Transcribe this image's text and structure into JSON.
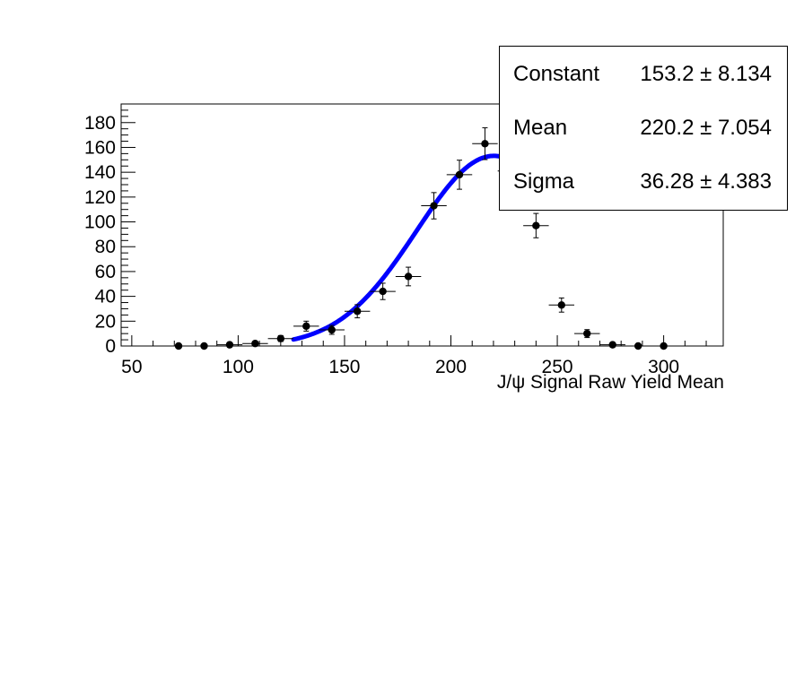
{
  "chart_data": {
    "type": "scatter",
    "title": "",
    "xlabel": "J/ψ Signal Raw Yield Mean",
    "ylabel": "",
    "xlim": [
      45,
      328
    ],
    "ylim": [
      0,
      195
    ],
    "x_ticks": [
      50,
      100,
      150,
      200,
      250,
      300
    ],
    "y_ticks": [
      0,
      20,
      40,
      60,
      80,
      100,
      120,
      140,
      160,
      180
    ],
    "grid": false,
    "points": [
      {
        "x": 72,
        "y": 0,
        "xerr": 6,
        "yerr": 1
      },
      {
        "x": 84,
        "y": 0,
        "xerr": 6,
        "yerr": 1
      },
      {
        "x": 96,
        "y": 1,
        "xerr": 6,
        "yerr": 1
      },
      {
        "x": 108,
        "y": 2,
        "xerr": 6,
        "yerr": 1.4
      },
      {
        "x": 120,
        "y": 6,
        "xerr": 6,
        "yerr": 2.4
      },
      {
        "x": 132,
        "y": 16,
        "xerr": 6,
        "yerr": 4
      },
      {
        "x": 144,
        "y": 13,
        "xerr": 6,
        "yerr": 3.6
      },
      {
        "x": 156,
        "y": 28,
        "xerr": 6,
        "yerr": 5.3
      },
      {
        "x": 168,
        "y": 44,
        "xerr": 6,
        "yerr": 6.6
      },
      {
        "x": 180,
        "y": 56,
        "xerr": 6,
        "yerr": 7.5
      },
      {
        "x": 192,
        "y": 113,
        "xerr": 6,
        "yerr": 10.6
      },
      {
        "x": 204,
        "y": 138,
        "xerr": 6,
        "yerr": 11.7
      },
      {
        "x": 216,
        "y": 163,
        "xerr": 6,
        "yerr": 12.8
      },
      {
        "x": 228,
        "y": 141,
        "xerr": 6,
        "yerr": 11.9
      },
      {
        "x": 240,
        "y": 97,
        "xerr": 6,
        "yerr": 9.8
      },
      {
        "x": 252,
        "y": 33,
        "xerr": 6,
        "yerr": 5.7
      },
      {
        "x": 264,
        "y": 10,
        "xerr": 6,
        "yerr": 3.2
      },
      {
        "x": 276,
        "y": 1,
        "xerr": 6,
        "yerr": 1
      },
      {
        "x": 288,
        "y": 0,
        "xerr": 6,
        "yerr": 1
      },
      {
        "x": 300,
        "y": 0,
        "xerr": 6,
        "yerr": 1
      }
    ],
    "fit": {
      "function": "gaus",
      "constant": 153.2,
      "mean": 220.2,
      "sigma": 36.28,
      "x_range": [
        126,
        228
      ],
      "color": "#0000ff"
    },
    "marker_color": "#000000"
  },
  "stats": [
    {
      "name": "Constant",
      "value": "153.2 ± 8.134"
    },
    {
      "name": "Mean",
      "value": "220.2 ± 7.054"
    },
    {
      "name": "Sigma",
      "value": "36.28 ± 4.383"
    }
  ]
}
